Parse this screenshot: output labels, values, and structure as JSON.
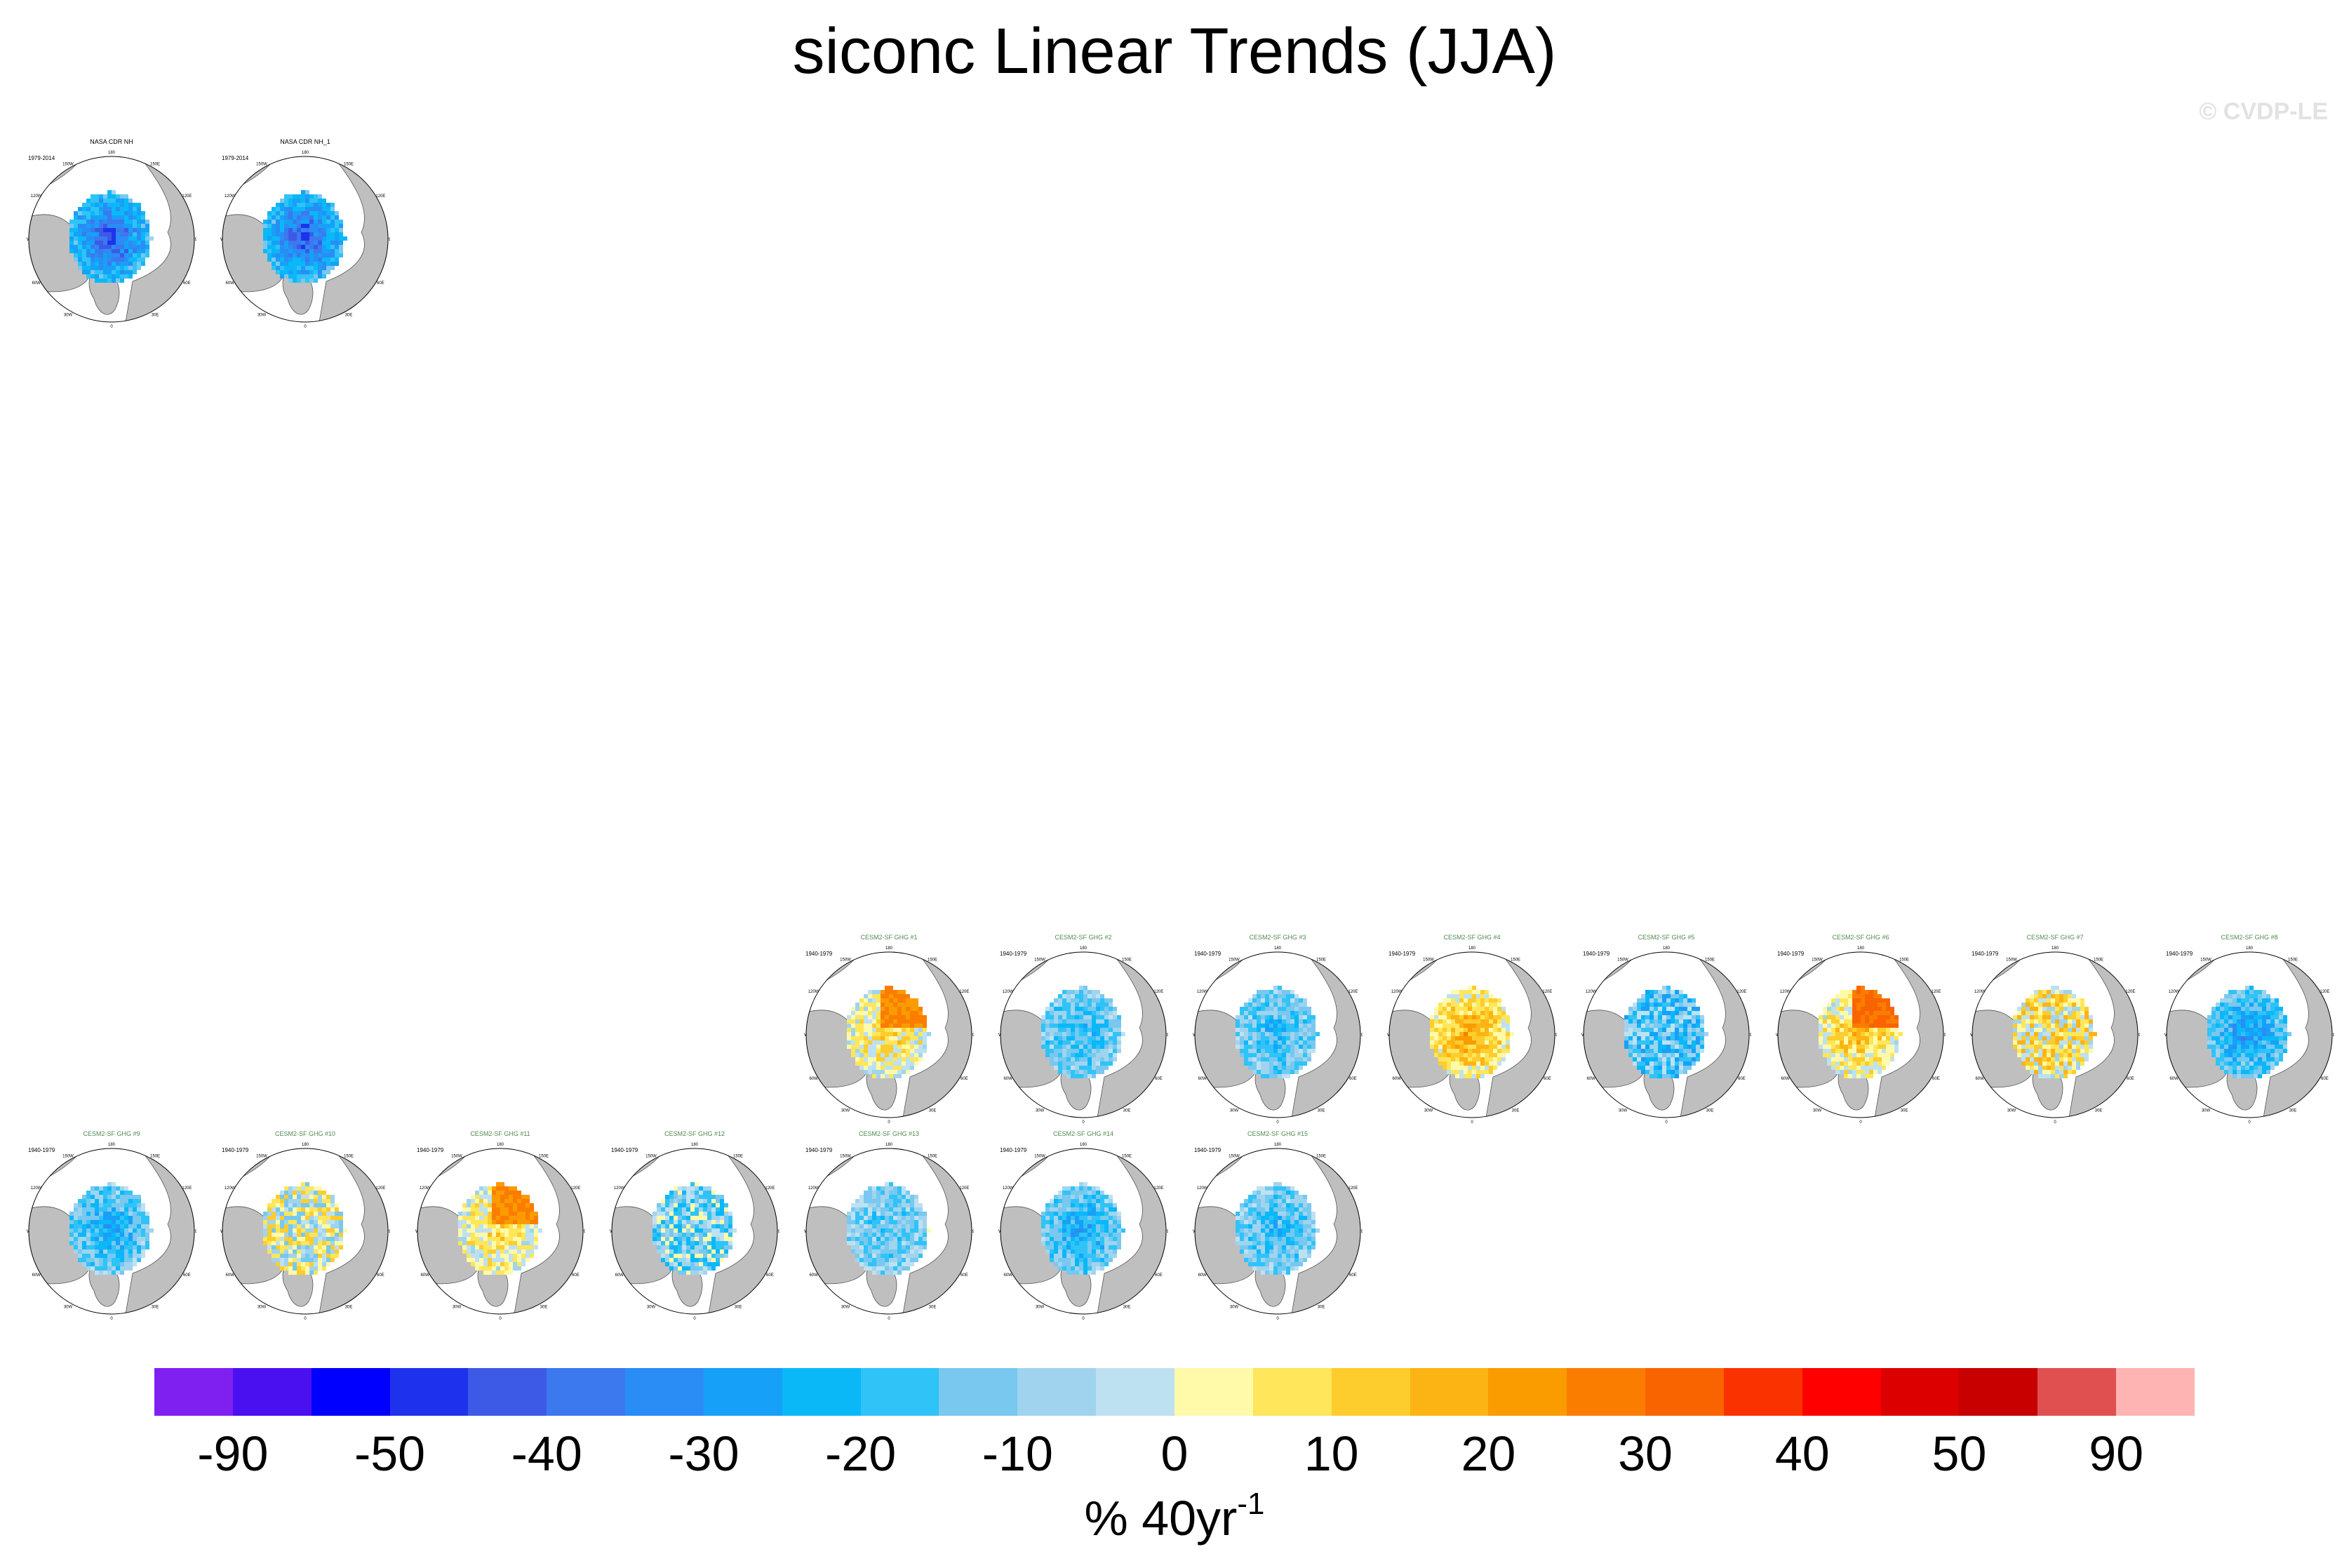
{
  "title": "siconc Linear Trends (JJA)",
  "watermark": "© CVDP-LE",
  "colors": {
    "land": "#bfbfbf",
    "ocean": "#ffffff",
    "outline": "#000000",
    "obs_title": "#000000",
    "model_title": "#4f8a4f"
  },
  "map_labels": {
    "longitude_180": "180",
    "longitude_150w": "150W",
    "longitude_150e": "150E",
    "longitude_120w": "120W",
    "longitude_120e": "120E",
    "longitude_90w": "90W",
    "longitude_90e": "90E",
    "longitude_60w": "60W",
    "longitude_60e": "60E",
    "longitude_30w": "30W",
    "longitude_30e": "30E",
    "longitude_0": "0"
  },
  "chart_data": {
    "type": "heatmap",
    "projection": "polar stereographic, Northern Hemisphere",
    "variable": "siconc",
    "season": "JJA",
    "panels": [
      {
        "title": "NASA CDR NH",
        "period": "1979-2014",
        "group": "observations",
        "row": 1,
        "column": 1,
        "pattern": "strong-decline",
        "colormap_value_hint": -40
      },
      {
        "title": "NASA CDR NH_1",
        "period": "1979-2014",
        "group": "observations",
        "row": 1,
        "column": 2,
        "pattern": "strong-decline",
        "colormap_value_hint": -40
      },
      {
        "title": "CESM2-SF GHG #1",
        "period": "1940-1979",
        "group": "model",
        "row": 2,
        "column": 5,
        "pattern": "increase-pacific",
        "colormap_value_hint": 15
      },
      {
        "title": "CESM2-SF GHG #2",
        "period": "1940-1979",
        "group": "model",
        "row": 2,
        "column": 6,
        "pattern": "decline",
        "colormap_value_hint": -15
      },
      {
        "title": "CESM2-SF GHG #3",
        "period": "1940-1979",
        "group": "model",
        "row": 2,
        "column": 7,
        "pattern": "decline",
        "colormap_value_hint": -15
      },
      {
        "title": "CESM2-SF GHG #4",
        "period": "1940-1979",
        "group": "model",
        "row": 2,
        "column": 8,
        "pattern": "increase",
        "colormap_value_hint": 25
      },
      {
        "title": "CESM2-SF GHG #5",
        "period": "1940-1979",
        "group": "model",
        "row": 2,
        "column": 9,
        "pattern": "mixed",
        "colormap_value_hint": -10
      },
      {
        "title": "CESM2-SF GHG #6",
        "period": "1940-1979",
        "group": "model",
        "row": 2,
        "column": 10,
        "pattern": "increase-pacific",
        "colormap_value_hint": 20
      },
      {
        "title": "CESM2-SF GHG #7",
        "period": "1940-1979",
        "group": "model",
        "row": 2,
        "column": 11,
        "pattern": "mixed",
        "colormap_value_hint": 10
      },
      {
        "title": "CESM2-SF GHG #8",
        "period": "1940-1979",
        "group": "model",
        "row": 2,
        "column": 12,
        "pattern": "decline",
        "colormap_value_hint": -25
      },
      {
        "title": "CESM2-SF GHG #9",
        "period": "1940-1979",
        "group": "model",
        "row": 3,
        "column": 1,
        "pattern": "decline",
        "colormap_value_hint": -20
      },
      {
        "title": "CESM2-SF GHG #10",
        "period": "1940-1979",
        "group": "model",
        "row": 3,
        "column": 2,
        "pattern": "mixed",
        "colormap_value_hint": 5
      },
      {
        "title": "CESM2-SF GHG #11",
        "period": "1940-1979",
        "group": "model",
        "row": 3,
        "column": 3,
        "pattern": "increase-pacific",
        "colormap_value_hint": 15
      },
      {
        "title": "CESM2-SF GHG #12",
        "period": "1940-1979",
        "group": "model",
        "row": 3,
        "column": 4,
        "pattern": "mixed",
        "colormap_value_hint": -5
      },
      {
        "title": "CESM2-SF GHG #13",
        "period": "1940-1979",
        "group": "model",
        "row": 3,
        "column": 5,
        "pattern": "decline",
        "colormap_value_hint": -10
      },
      {
        "title": "CESM2-SF GHG #14",
        "period": "1940-1979",
        "group": "model",
        "row": 3,
        "column": 6,
        "pattern": "decline",
        "colormap_value_hint": -20
      },
      {
        "title": "CESM2-SF GHG #15",
        "period": "1940-1979",
        "group": "model",
        "row": 3,
        "column": 7,
        "pattern": "decline",
        "colormap_value_hint": -15
      }
    ],
    "colorbar": {
      "label": "% 40yr",
      "label_superscript": "-1",
      "tick_labels": [
        "-90",
        "-50",
        "-40",
        "-30",
        "-20",
        "-10",
        "0",
        "10",
        "20",
        "30",
        "40",
        "50",
        "90"
      ],
      "levels": [
        -90,
        -50,
        -45,
        -40,
        -35,
        -30,
        -25,
        -20,
        -15,
        -10,
        -5,
        0,
        5,
        10,
        15,
        20,
        25,
        30,
        35,
        40,
        45,
        50,
        90
      ],
      "colors": [
        "#8020f0",
        "#4a10f0",
        "#0000ff",
        "#1e32ee",
        "#3c5ae6",
        "#3c78ee",
        "#2a8cf5",
        "#17a0f7",
        "#0ab8f8",
        "#30c3f7",
        "#78c8f0",
        "#a0d4ee",
        "#bee1f2",
        "#fffaaa",
        "#ffe65a",
        "#fccd2d",
        "#fcb414",
        "#fa9b00",
        "#fa7d00",
        "#fa6400",
        "#fa3200",
        "#ff0000",
        "#dc0000",
        "#c80000",
        "#e05050",
        "#ffb4b4"
      ]
    }
  }
}
